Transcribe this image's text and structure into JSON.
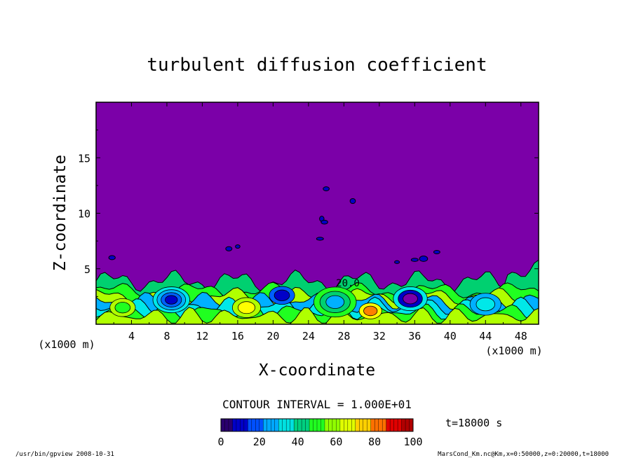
{
  "chart_data": {
    "type": "heatmap",
    "title": "turbulent diffusion coefficient",
    "xlabel": "X-coordinate",
    "ylabel": "Z-coordinate",
    "x_unit_left": "(x1000 m)",
    "x_unit_right": "(x1000 m)",
    "xlim": [
      0,
      50
    ],
    "ylim": [
      0,
      20
    ],
    "x_ticks": [
      4,
      8,
      12,
      16,
      20,
      24,
      28,
      32,
      36,
      40,
      44,
      48
    ],
    "y_ticks": [
      5,
      10,
      15
    ],
    "contour_interval_text": "CONTOUR INTERVAL = 1.000E+01",
    "contour_interval": 10,
    "contour_label": "20.0",
    "time_text": "t=18000 s",
    "colorbar": {
      "min": 0,
      "max": 100,
      "ticks": [
        0,
        20,
        40,
        60,
        80,
        100
      ],
      "colors": [
        "#7b00a8",
        "#0000c8",
        "#0060ff",
        "#00b0ff",
        "#00e8e8",
        "#00d070",
        "#20ff20",
        "#b0ff00",
        "#ffff00",
        "#ff8000",
        "#e00000"
      ]
    },
    "background_value": 0,
    "turbulent_layer_top_km": 4.5,
    "footer_left": "/usr/bin/gpview   2008-10-31",
    "footer_right": "MarsCond_Km.nc@Km,x=0:50000,z=0:20000,t=18000"
  }
}
